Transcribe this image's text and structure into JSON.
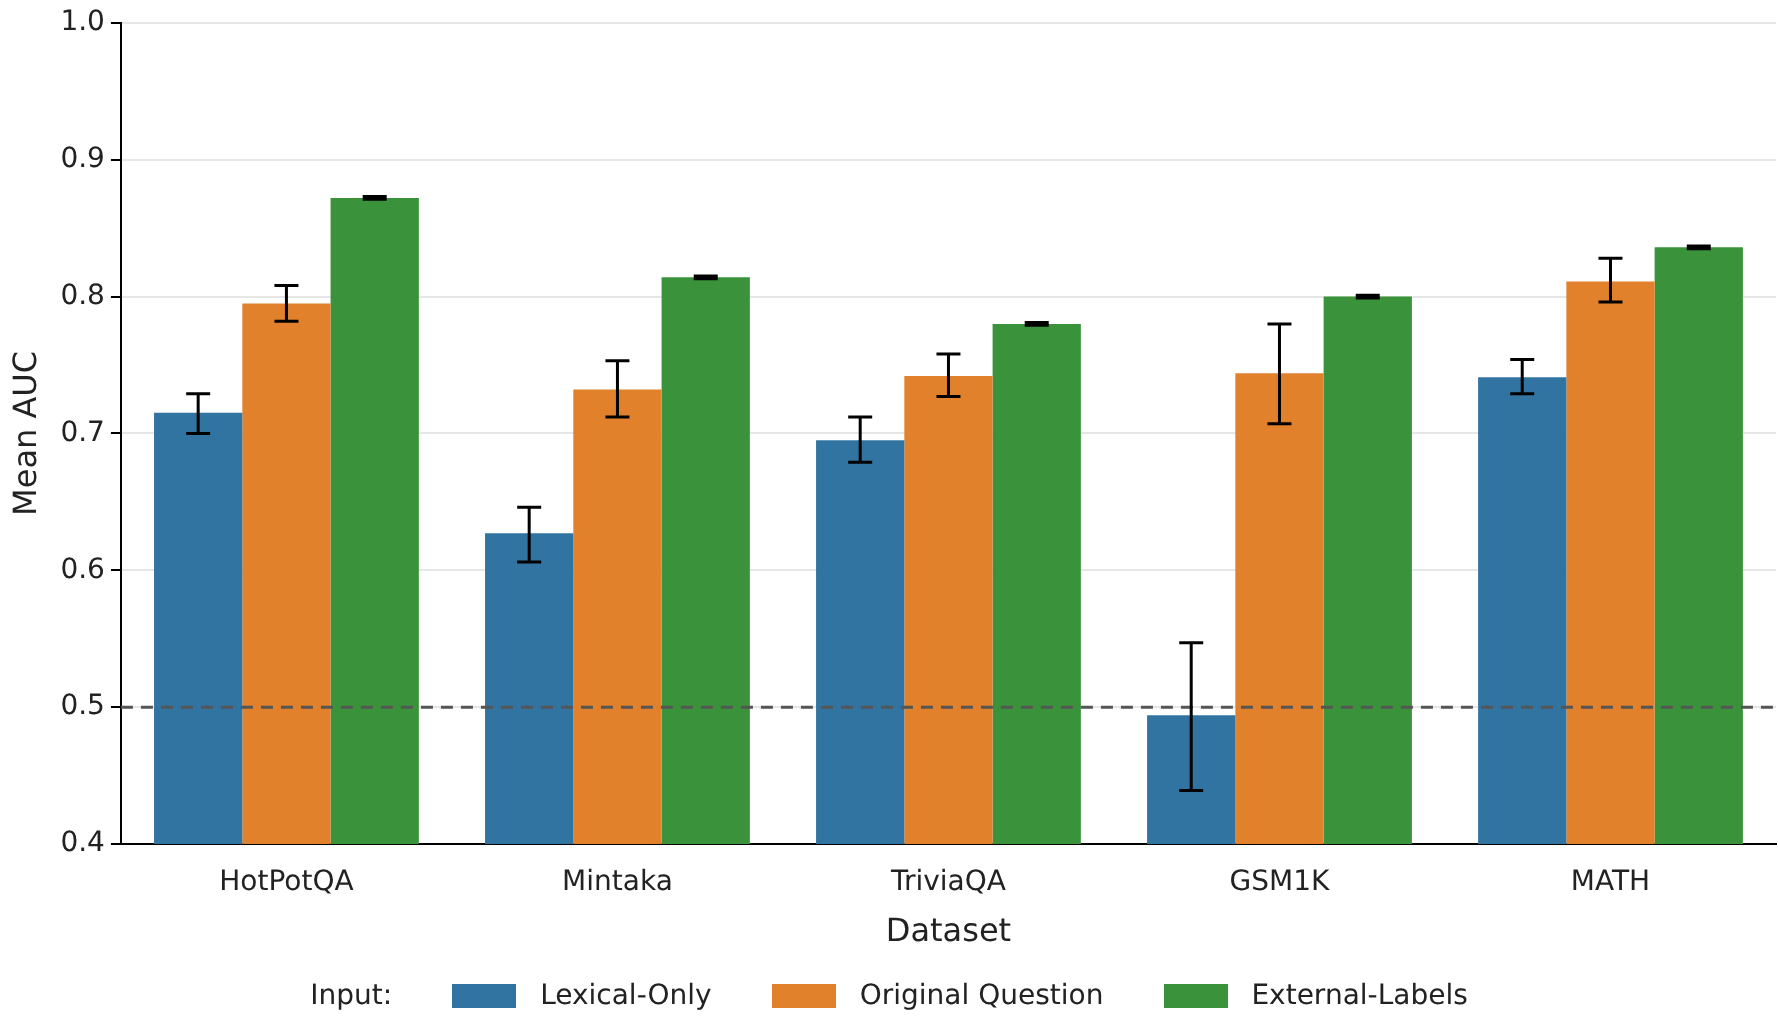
{
  "chart_data": {
    "type": "bar",
    "xlabel": "Dataset",
    "ylabel": "Mean AUC",
    "legend_title": "Input:",
    "legend": "bottom",
    "grid": "y",
    "categories": [
      "HotPotQA",
      "Mintaka",
      "TriviaQA",
      "GSM1K",
      "MATH"
    ],
    "ylim": [
      0.4,
      1.0
    ],
    "yticks": [
      0.4,
      0.5,
      0.6,
      0.7,
      0.8,
      0.9,
      {
        "value": 1.0,
        "label": "1.0"
      }
    ],
    "ref_lines": [
      {
        "axis": "y",
        "value": 0.5,
        "color": "#555555",
        "line_style": "dashed"
      }
    ],
    "series": [
      {
        "name": "Lexical-Only",
        "color": "#3274a1",
        "values": [
          0.715,
          0.627,
          0.695,
          0.494,
          0.741
        ],
        "errors": [
          [
            0.7,
            0.729
          ],
          [
            0.606,
            0.646
          ],
          [
            0.679,
            0.712
          ],
          [
            0.439,
            0.547
          ],
          [
            0.729,
            0.754
          ]
        ]
      },
      {
        "name": "Original Question",
        "color": "#e1812c",
        "values": [
          0.795,
          0.732,
          0.742,
          0.744,
          0.811
        ],
        "errors": [
          [
            0.782,
            0.808
          ],
          [
            0.712,
            0.753
          ],
          [
            0.727,
            0.758
          ],
          [
            0.707,
            0.78
          ],
          [
            0.796,
            0.828
          ]
        ]
      },
      {
        "name": "External-Labels",
        "color": "#3a923a",
        "values": [
          0.872,
          0.814,
          0.78,
          0.8,
          0.836
        ],
        "errors": [
          [
            0.871,
            0.873
          ],
          [
            0.813,
            0.815
          ],
          [
            0.779,
            0.781
          ],
          [
            0.799,
            0.801
          ],
          [
            0.835,
            0.837
          ]
        ]
      }
    ]
  }
}
